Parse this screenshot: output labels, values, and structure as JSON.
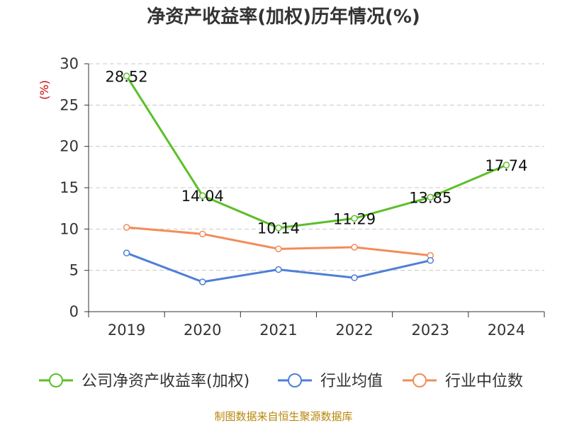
{
  "chart_data": {
    "type": "line",
    "title": "净资产收益率(加权)历年情况(%)",
    "ylabel": "(%)",
    "xlabel": "",
    "categories": [
      "2019",
      "2020",
      "2021",
      "2022",
      "2023",
      "2024"
    ],
    "ylim": [
      0,
      30
    ],
    "yticks": [
      0,
      5,
      10,
      15,
      20,
      25,
      30
    ],
    "grid": true,
    "legend_position": "bottom",
    "series": [
      {
        "name": "公司净资产收益率(加权)",
        "color": "#5cbf2a",
        "values": [
          28.52,
          14.04,
          10.14,
          11.29,
          13.85,
          17.74
        ],
        "labels": [
          "28.52",
          "14.04",
          "10.14",
          "11.29",
          "13.85",
          "17.74"
        ]
      },
      {
        "name": "行业均值",
        "color": "#4e7fd8",
        "values": [
          7.1,
          3.6,
          5.1,
          4.1,
          6.2,
          null
        ]
      },
      {
        "name": "行业中位数",
        "color": "#f28c5a",
        "values": [
          10.2,
          9.4,
          7.6,
          7.8,
          6.8,
          null
        ]
      }
    ],
    "source": "制图数据来自恒生聚源数据库"
  }
}
